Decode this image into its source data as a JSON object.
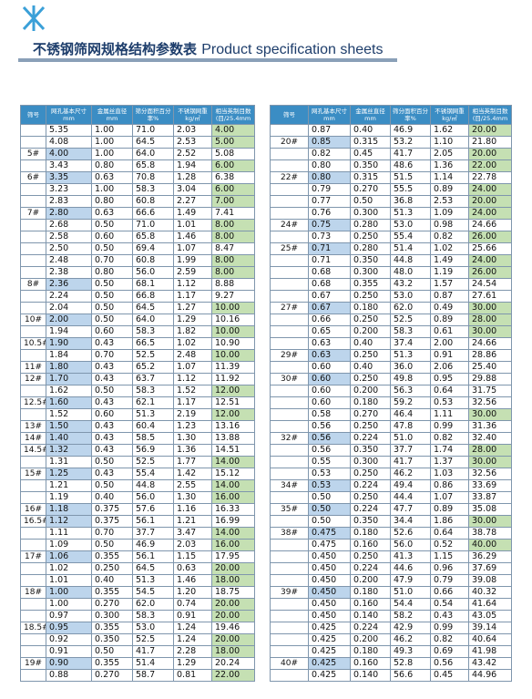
{
  "header": {
    "title": "不锈钢筛网规格结构参数表",
    "title_en": "Product specification sheets"
  },
  "columns": [
    "筛号",
    "网孔基本尺寸mm",
    "金属丝直径mm",
    "筛分面积百分率%",
    "不锈钢网重kg/㎡",
    "相当英制目数(目/25.4mm"
  ],
  "tables": [
    {
      "rows": [
        [
          "",
          "5.35",
          "1.00",
          "71.0",
          "2.03",
          "4.00"
        ],
        [
          "",
          "4.08",
          "1.00",
          "64.5",
          "2.53",
          "5.00"
        ],
        [
          "5#",
          "4.00",
          "1.00",
          "64.0",
          "2.52",
          "5.08"
        ],
        [
          "",
          "3.43",
          "0.80",
          "65.8",
          "1.94",
          "6.00"
        ],
        [
          "6#",
          "3.35",
          "0.63",
          "70.8",
          "1.28",
          "6.38"
        ],
        [
          "",
          "3.23",
          "1.00",
          "58.3",
          "3.04",
          "6.00"
        ],
        [
          "",
          "2.83",
          "0.80",
          "60.8",
          "2.27",
          "7.00"
        ],
        [
          "7#",
          "2.80",
          "0.63",
          "66.6",
          "1.49",
          "7.41"
        ],
        [
          "",
          "2.68",
          "0.50",
          "71.0",
          "1.01",
          "8.00"
        ],
        [
          "",
          "2.58",
          "0.60",
          "65.8",
          "1.46",
          "8.00"
        ],
        [
          "",
          "2.50",
          "0.50",
          "69.4",
          "1.07",
          "8.47"
        ],
        [
          "",
          "2.48",
          "0.70",
          "60.8",
          "1.99",
          "8.00"
        ],
        [
          "",
          "2.38",
          "0.80",
          "56.0",
          "2.59",
          "8.00"
        ],
        [
          "8#",
          "2.36",
          "0.50",
          "68.1",
          "1.12",
          "8.88"
        ],
        [
          "",
          "2.24",
          "0.50",
          "66.8",
          "1.17",
          "9.27"
        ],
        [
          "",
          "2.04",
          "0.50",
          "64.5",
          "1.27",
          "10.00"
        ],
        [
          "10#",
          "2.00",
          "0.50",
          "64.0",
          "1.29",
          "10.16"
        ],
        [
          "",
          "1.94",
          "0.60",
          "58.3",
          "1.82",
          "10.00"
        ],
        [
          "10.5#",
          "1.90",
          "0.43",
          "66.5",
          "1.02",
          "10.90"
        ],
        [
          "",
          "1.84",
          "0.70",
          "52.5",
          "2.48",
          "10.00"
        ],
        [
          "11#",
          "1.80",
          "0.43",
          "65.2",
          "1.07",
          "11.39"
        ],
        [
          "12#",
          "1.70",
          "0.43",
          "63.7",
          "1.12",
          "11.92"
        ],
        [
          "",
          "1.62",
          "0.50",
          "58.3",
          "1.52",
          "12.00"
        ],
        [
          "12.5#",
          "1.60",
          "0.43",
          "62.1",
          "1.17",
          "12.51"
        ],
        [
          "",
          "1.52",
          "0.60",
          "51.3",
          "2.19",
          "12.00"
        ],
        [
          "13#",
          "1.50",
          "0.43",
          "60.4",
          "1.23",
          "13.16"
        ],
        [
          "14#",
          "1.40",
          "0.43",
          "58.5",
          "1.30",
          "13.88"
        ],
        [
          "14.5#",
          "1.32",
          "0.43",
          "56.9",
          "1.36",
          "14.51"
        ],
        [
          "",
          "1.31",
          "0.50",
          "52.5",
          "1.77",
          "14.00"
        ],
        [
          "15#",
          "1.25",
          "0.43",
          "55.4",
          "1.42",
          "15.12"
        ],
        [
          "",
          "1.21",
          "0.50",
          "44.8",
          "2.55",
          "14.00"
        ],
        [
          "",
          "1.19",
          "0.40",
          "56.0",
          "1.30",
          "16.00"
        ],
        [
          "16#",
          "1.18",
          "0.375",
          "57.6",
          "1.16",
          "16.33"
        ],
        [
          "16.5#",
          "1.12",
          "0.375",
          "56.1",
          "1.21",
          "16.99"
        ],
        [
          "",
          "1.11",
          "0.70",
          "37.7",
          "3.47",
          "14.00"
        ],
        [
          "",
          "1.09",
          "0.50",
          "46.9",
          "2.03",
          "16.00"
        ],
        [
          "17#",
          "1.06",
          "0.355",
          "56.1",
          "1.15",
          "17.95"
        ],
        [
          "",
          "1.02",
          "0.250",
          "64.5",
          "0.63",
          "20.00"
        ],
        [
          "",
          "1.01",
          "0.40",
          "51.3",
          "1.46",
          "18.00"
        ],
        [
          "18#",
          "1.00",
          "0.355",
          "54.5",
          "1.20",
          "18.75"
        ],
        [
          "",
          "1.00",
          "0.270",
          "62.0",
          "0.74",
          "20.00"
        ],
        [
          "",
          "0.97",
          "0.300",
          "58.3",
          "0.91",
          "20.00"
        ],
        [
          "18.5#",
          "0.95",
          "0.355",
          "53.0",
          "1.24",
          "19.46"
        ],
        [
          "",
          "0.92",
          "0.350",
          "52.5",
          "1.24",
          "20.00"
        ],
        [
          "",
          "0.91",
          "0.50",
          "41.7",
          "2.28",
          "18.00"
        ],
        [
          "19#",
          "0.90",
          "0.355",
          "51.4",
          "1.29",
          "20.24"
        ],
        [
          "",
          "0.88",
          "0.270",
          "58.7",
          "0.81",
          "22.00"
        ]
      ]
    },
    {
      "rows": [
        [
          "",
          "0.87",
          "0.40",
          "46.9",
          "1.62",
          "20.00"
        ],
        [
          "20#",
          "0.85",
          "0.315",
          "53.2",
          "1.10",
          "21.80"
        ],
        [
          "",
          "0.82",
          "0.45",
          "41.7",
          "2.05",
          "20.00"
        ],
        [
          "",
          "0.80",
          "0.350",
          "48.6",
          "1.36",
          "22.00"
        ],
        [
          "22#",
          "0.80",
          "0.315",
          "51.5",
          "1.14",
          "22.78"
        ],
        [
          "",
          "0.79",
          "0.270",
          "55.5",
          "0.89",
          "24.00"
        ],
        [
          "",
          "0.77",
          "0.50",
          "36.8",
          "2.53",
          "20.00"
        ],
        [
          "",
          "0.76",
          "0.300",
          "51.3",
          "1.09",
          "24.00"
        ],
        [
          "24#",
          "0.75",
          "0.280",
          "53.0",
          "0.98",
          "24.66"
        ],
        [
          "",
          "0.73",
          "0.250",
          "55.4",
          "0.82",
          "26.00"
        ],
        [
          "25#",
          "0.71",
          "0.280",
          "51.4",
          "1.02",
          "25.66"
        ],
        [
          "",
          "0.71",
          "0.350",
          "44.8",
          "1.49",
          "24.00"
        ],
        [
          "",
          "0.68",
          "0.300",
          "48.0",
          "1.19",
          "26.00"
        ],
        [
          "",
          "0.68",
          "0.355",
          "43.2",
          "1.57",
          "24.54"
        ],
        [
          "",
          "0.67",
          "0.250",
          "53.0",
          "0.87",
          "27.61"
        ],
        [
          "27#",
          "0.67",
          "0.180",
          "62.0",
          "0.49",
          "30.00"
        ],
        [
          "",
          "0.66",
          "0.250",
          "52.5",
          "0.89",
          "28.00"
        ],
        [
          "",
          "0.65",
          "0.200",
          "58.3",
          "0.61",
          "30.00"
        ],
        [
          "",
          "0.63",
          "0.40",
          "37.4",
          "2.00",
          "24.66"
        ],
        [
          "29#",
          "0.63",
          "0.250",
          "51.3",
          "0.91",
          "28.86"
        ],
        [
          "",
          "0.60",
          "0.40",
          "36.0",
          "2.06",
          "25.40"
        ],
        [
          "30#",
          "0.60",
          "0.250",
          "49.8",
          "0.95",
          "29.88"
        ],
        [
          "",
          "0.60",
          "0.200",
          "56.3",
          "0.64",
          "31.75"
        ],
        [
          "",
          "0.60",
          "0.180",
          "59.2",
          "0.53",
          "32.56"
        ],
        [
          "",
          "0.58",
          "0.270",
          "46.4",
          "1.11",
          "30.00"
        ],
        [
          "",
          "0.56",
          "0.250",
          "47.8",
          "0.99",
          "31.36"
        ],
        [
          "32#",
          "0.56",
          "0.224",
          "51.0",
          "0.82",
          "32.40"
        ],
        [
          "",
          "0.56",
          "0.350",
          "37.7",
          "1.74",
          "28.00"
        ],
        [
          "",
          "0.55",
          "0.300",
          "41.7",
          "1.37",
          "30.00"
        ],
        [
          "",
          "0.53",
          "0.250",
          "46.2",
          "1.03",
          "32.56"
        ],
        [
          "34#",
          "0.53",
          "0.224",
          "49.4",
          "0.86",
          "33.69"
        ],
        [
          "",
          "0.50",
          "0.250",
          "44.4",
          "1.07",
          "33.87"
        ],
        [
          "35#",
          "0.50",
          "0.224",
          "47.7",
          "0.89",
          "35.08"
        ],
        [
          "",
          "0.50",
          "0.350",
          "34.4",
          "1.86",
          "30.00"
        ],
        [
          "38#",
          "0.475",
          "0.180",
          "52.6",
          "0.64",
          "38.78"
        ],
        [
          "",
          "0.475",
          "0.160",
          "56.0",
          "0.52",
          "40.00"
        ],
        [
          "",
          "0.450",
          "0.250",
          "41.3",
          "1.15",
          "36.29"
        ],
        [
          "",
          "0.450",
          "0.224",
          "44.6",
          "0.96",
          "37.69"
        ],
        [
          "",
          "0.450",
          "0.200",
          "47.9",
          "0.79",
          "39.08"
        ],
        [
          "39#",
          "0.450",
          "0.180",
          "51.0",
          "0.66",
          "40.32"
        ],
        [
          "",
          "0.450",
          "0.160",
          "54.4",
          "0.54",
          "41.64"
        ],
        [
          "",
          "0.450",
          "0.140",
          "58.2",
          "0.43",
          "43.05"
        ],
        [
          "",
          "0.425",
          "0.224",
          "42.9",
          "0.99",
          "39.14"
        ],
        [
          "",
          "0.425",
          "0.200",
          "46.2",
          "0.82",
          "40.64"
        ],
        [
          "",
          "0.425",
          "0.180",
          "49.3",
          "0.69",
          "41.98"
        ],
        [
          "40#",
          "0.425",
          "0.160",
          "52.8",
          "0.56",
          "43.42"
        ],
        [
          "",
          "0.425",
          "0.140",
          "56.6",
          "0.45",
          "44.96"
        ]
      ]
    }
  ]
}
